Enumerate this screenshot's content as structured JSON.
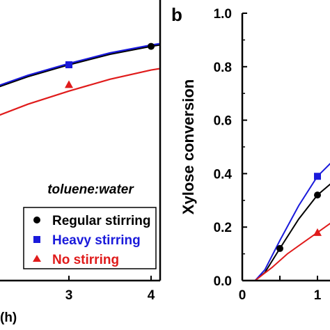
{
  "chart_data": [
    {
      "type": "line",
      "panel": "a",
      "xlabel": "(h)",
      "ylabel": "",
      "xlim": [
        2,
        4.1
      ],
      "ylim": [
        0,
        1.0
      ],
      "x_ticks": [
        "3",
        "4"
      ],
      "legend": {
        "title": "toluene:water",
        "placement": "bottom-right",
        "entries": [
          {
            "label": "Regular stirring",
            "color": "#000000",
            "marker": "circle"
          },
          {
            "label": "Heavy stirring",
            "color": "#1a1adb",
            "marker": "square"
          },
          {
            "label": "No stirring",
            "color": "#e01b1b",
            "marker": "triangle"
          }
        ]
      },
      "series": [
        {
          "name": "Regular stirring",
          "color": "#000000",
          "marker": "circle",
          "points": [
            {
              "x": 4,
              "y": 0.89
            }
          ],
          "curve": [
            [
              2,
              0.72
            ],
            [
              2.5,
              0.775
            ],
            [
              3,
              0.82
            ],
            [
              3.5,
              0.86
            ],
            [
              4,
              0.89
            ],
            [
              4.1,
              0.895
            ]
          ]
        },
        {
          "name": "Heavy stirring",
          "color": "#1a1adb",
          "marker": "square",
          "points": [
            {
              "x": 3,
              "y": 0.82
            }
          ],
          "curve": [
            [
              2,
              0.725
            ],
            [
              2.5,
              0.78
            ],
            [
              3,
              0.825
            ],
            [
              3.5,
              0.865
            ],
            [
              4,
              0.895
            ],
            [
              4.1,
              0.9
            ]
          ]
        },
        {
          "name": "No stirring",
          "color": "#e01b1b",
          "marker": "triangle",
          "points": [
            {
              "x": 3,
              "y": 0.745
            }
          ],
          "curve": [
            [
              2,
              0.61
            ],
            [
              2.5,
              0.67
            ],
            [
              3,
              0.72
            ],
            [
              3.5,
              0.765
            ],
            [
              4,
              0.8
            ],
            [
              4.1,
              0.805
            ]
          ]
        }
      ]
    },
    {
      "type": "line",
      "panel": "b",
      "xlabel": "",
      "ylabel": "Xylose conversion",
      "xlim": [
        0,
        1.25
      ],
      "ylim": [
        0,
        1.0
      ],
      "x_ticks": [
        "0",
        "1"
      ],
      "y_ticks": [
        "0.0",
        "0.2",
        "0.4",
        "0.6",
        "0.8",
        "1.0"
      ],
      "series": [
        {
          "name": "Regular stirring",
          "color": "#000000",
          "marker": "circle",
          "points": [
            {
              "x": 0.5,
              "y": 0.12
            },
            {
              "x": 1.0,
              "y": 0.32
            }
          ],
          "curve": [
            [
              0,
              0
            ],
            [
              0.17,
              0.0
            ],
            [
              0.3,
              0.03
            ],
            [
              0.5,
              0.12
            ],
            [
              0.75,
              0.23
            ],
            [
              1.0,
              0.32
            ],
            [
              1.25,
              0.38
            ]
          ]
        },
        {
          "name": "Heavy stirring",
          "color": "#1a1adb",
          "marker": "square",
          "points": [
            {
              "x": 1.0,
              "y": 0.39
            }
          ],
          "curve": [
            [
              0,
              0
            ],
            [
              0.17,
              0.0
            ],
            [
              0.3,
              0.04
            ],
            [
              0.5,
              0.15
            ],
            [
              0.75,
              0.28
            ],
            [
              1.0,
              0.39
            ],
            [
              1.25,
              0.46
            ]
          ]
        },
        {
          "name": "No stirring",
          "color": "#e01b1b",
          "marker": "triangle",
          "points": [
            {
              "x": 1.0,
              "y": 0.18
            }
          ],
          "curve": [
            [
              0,
              0
            ],
            [
              0.17,
              0.0
            ],
            [
              0.4,
              0.05
            ],
            [
              0.6,
              0.1
            ],
            [
              0.8,
              0.14
            ],
            [
              1.0,
              0.18
            ],
            [
              1.25,
              0.23
            ]
          ]
        }
      ]
    }
  ]
}
